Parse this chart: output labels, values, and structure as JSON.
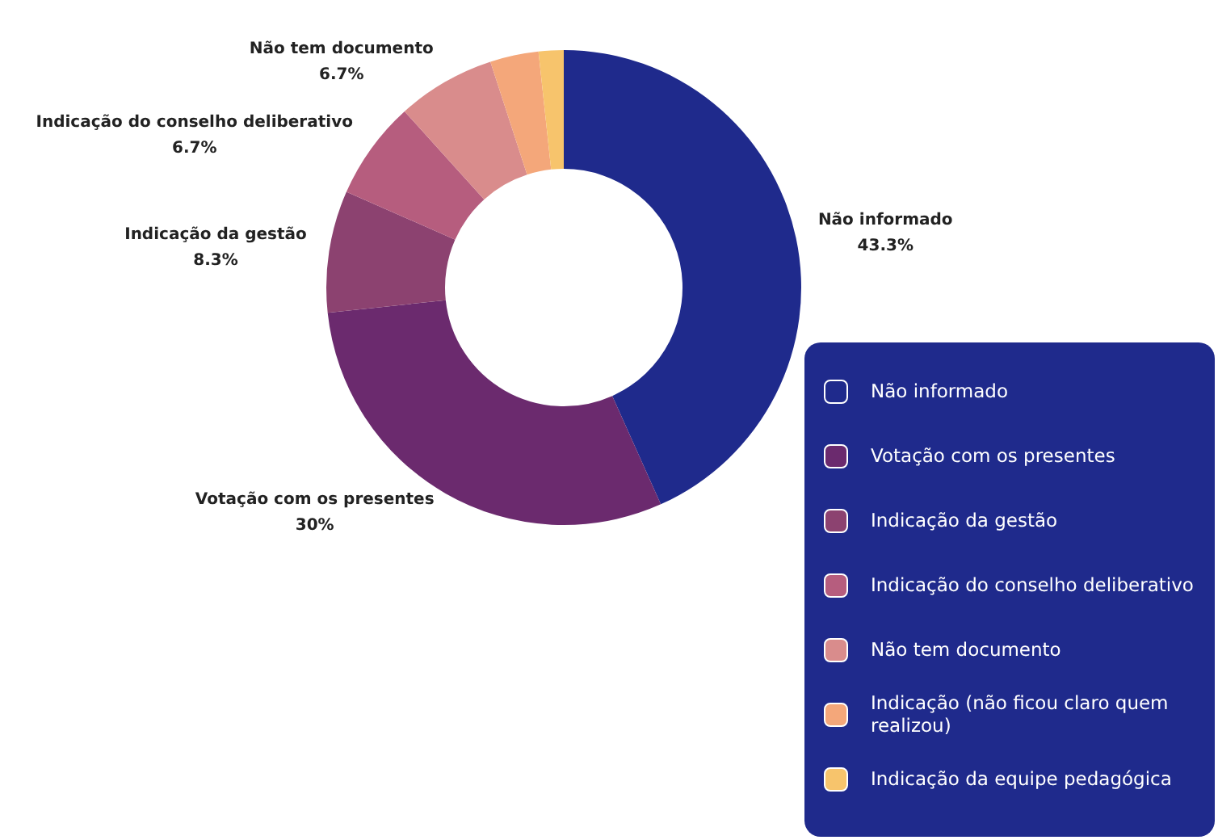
{
  "chart_data": {
    "type": "donut",
    "categories": [
      "Não informado",
      "Votação com os presentes",
      "Indicação da gestão",
      "Indicação do conselho deliberativo",
      "Não tem documento",
      "Indicação (não ficou claro quem realizou)",
      "Indicação da equipe pedagógica"
    ],
    "values": [
      43.3,
      30,
      8.3,
      6.7,
      6.7,
      3.3,
      1.7
    ],
    "colors": [
      "#1f2a8c",
      "#6b2a6e",
      "#8c4270",
      "#b65d7e",
      "#d98c8c",
      "#f4a77a",
      "#f7c46c"
    ],
    "value_labels": [
      "43.3%",
      "30%",
      "8.3%",
      "6.7%",
      "6.7%",
      null,
      null
    ],
    "legend": "bottom right"
  }
}
